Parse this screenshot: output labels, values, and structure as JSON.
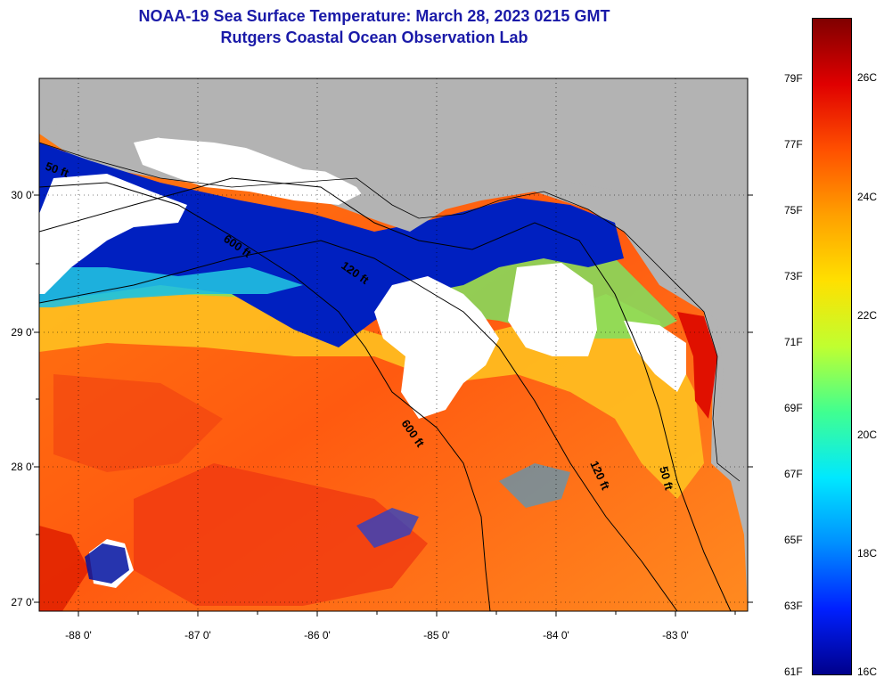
{
  "header": {
    "title": "NOAA-19 Sea Surface Temperature:  March 28, 2023 0215 GMT",
    "subtitle": "Rutgers Coastal Ocean Observation Lab"
  },
  "map": {
    "lat_labels": [
      "30 0'",
      "29 0'",
      "28 0'",
      "27 0'"
    ],
    "lon_labels": [
      "-88 0'",
      "-87 0'",
      "-86 0'",
      "-85 0'",
      "-84 0'",
      "-83 0'"
    ],
    "isobaths": [
      {
        "name": "600-ft-upper",
        "label": "600 ft"
      },
      {
        "name": "120-ft-upper",
        "label": "120 ft"
      },
      {
        "name": "600-ft-lower",
        "label": "600 ft"
      },
      {
        "name": "120-ft-lower",
        "label": "120 ft"
      },
      {
        "name": "50-ft",
        "label": "50 ft"
      },
      {
        "name": "50-ft-coast",
        "label": "50 ft"
      }
    ],
    "colors": {
      "land": "#b3b3b3",
      "cloud": "#ffffff",
      "ocean_warm": "#ff6a00"
    }
  },
  "colorbar": {
    "fahrenheit": [
      "79F",
      "77F",
      "75F",
      "73F",
      "71F",
      "69F",
      "67F",
      "65F",
      "63F",
      "61F"
    ],
    "celsius": [
      "26C",
      "24C",
      "22C",
      "20C",
      "18C",
      "16C"
    ],
    "gradient": [
      "#00008b",
      "#0020ff",
      "#0090ff",
      "#00e8ff",
      "#40ff90",
      "#c0ff30",
      "#ffe000",
      "#ffa000",
      "#ff5000",
      "#e00000",
      "#800000"
    ]
  }
}
